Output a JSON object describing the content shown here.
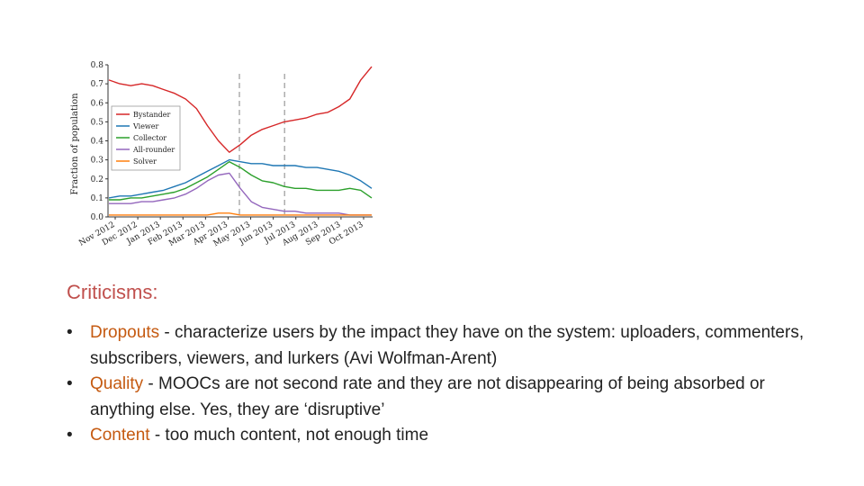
{
  "chart_data": {
    "type": "line",
    "ylabel": "Fraction of population",
    "ylim": [
      0,
      0.8
    ],
    "yticks": [
      "0.0",
      "0.1",
      "0.2",
      "0.3",
      "0.4",
      "0.5",
      "0.6",
      "0.7",
      "0.8"
    ],
    "xticks": [
      "Nov 2012",
      "Dec 2012",
      "Jan 2013",
      "Feb 2013",
      "Mar 2013",
      "Apr 2013",
      "May 2013",
      "Jun 2013",
      "Jul 2013",
      "Aug 2013",
      "Sep 2013",
      "Oct 2013"
    ],
    "legend_position": "middle-left",
    "vlines_at_tick_index": [
      5.5,
      7.5
    ],
    "series": [
      {
        "name": "Bystander",
        "color": "#d62728",
        "values": [
          0.72,
          0.7,
          0.69,
          0.7,
          0.69,
          0.67,
          0.65,
          0.62,
          0.57,
          0.48,
          0.4,
          0.34,
          0.38,
          0.43,
          0.46,
          0.48,
          0.5,
          0.51,
          0.52,
          0.54,
          0.55,
          0.58,
          0.62,
          0.72,
          0.79
        ]
      },
      {
        "name": "Viewer",
        "color": "#1f77b4",
        "values": [
          0.1,
          0.11,
          0.11,
          0.12,
          0.13,
          0.14,
          0.16,
          0.18,
          0.21,
          0.24,
          0.27,
          0.3,
          0.29,
          0.28,
          0.28,
          0.27,
          0.27,
          0.27,
          0.26,
          0.26,
          0.25,
          0.24,
          0.22,
          0.19,
          0.15
        ]
      },
      {
        "name": "Collector",
        "color": "#2ca02c",
        "values": [
          0.09,
          0.09,
          0.1,
          0.1,
          0.11,
          0.12,
          0.13,
          0.15,
          0.18,
          0.21,
          0.25,
          0.29,
          0.26,
          0.22,
          0.19,
          0.18,
          0.16,
          0.15,
          0.15,
          0.14,
          0.14,
          0.14,
          0.15,
          0.14,
          0.1
        ]
      },
      {
        "name": "All-rounder",
        "color": "#9467bd",
        "values": [
          0.07,
          0.07,
          0.07,
          0.08,
          0.08,
          0.09,
          0.1,
          0.12,
          0.15,
          0.19,
          0.22,
          0.23,
          0.15,
          0.08,
          0.05,
          0.04,
          0.03,
          0.03,
          0.02,
          0.02,
          0.02,
          0.02,
          0.01,
          0.01,
          0.01
        ]
      },
      {
        "name": "Solver",
        "color": "#ff7f0e",
        "values": [
          0.01,
          0.01,
          0.01,
          0.01,
          0.01,
          0.01,
          0.01,
          0.01,
          0.01,
          0.01,
          0.02,
          0.02,
          0.01,
          0.01,
          0.01,
          0.01,
          0.01,
          0.01,
          0.01,
          0.01,
          0.01,
          0.01,
          0.01,
          0.01,
          0.01
        ]
      }
    ]
  },
  "text": {
    "heading": "Criticisms:",
    "bullets": [
      {
        "term": "Dropouts",
        "rest": " - characterize users by the impact they have on the system: uploaders, commenters, subscribers, viewers, and lurkers (Avi Wolfman-Arent)"
      },
      {
        "term": "Quality",
        "rest": " - MOOCs are not second rate and they are not disappearing of being absorbed or anything else. Yes, they are ‘disruptive’"
      },
      {
        "term": "Content",
        "rest": " -  too much content, not enough time"
      }
    ],
    "bullet_symbol": "•"
  },
  "colors": {
    "heading": "#c0504d",
    "term": "#c55a11"
  }
}
